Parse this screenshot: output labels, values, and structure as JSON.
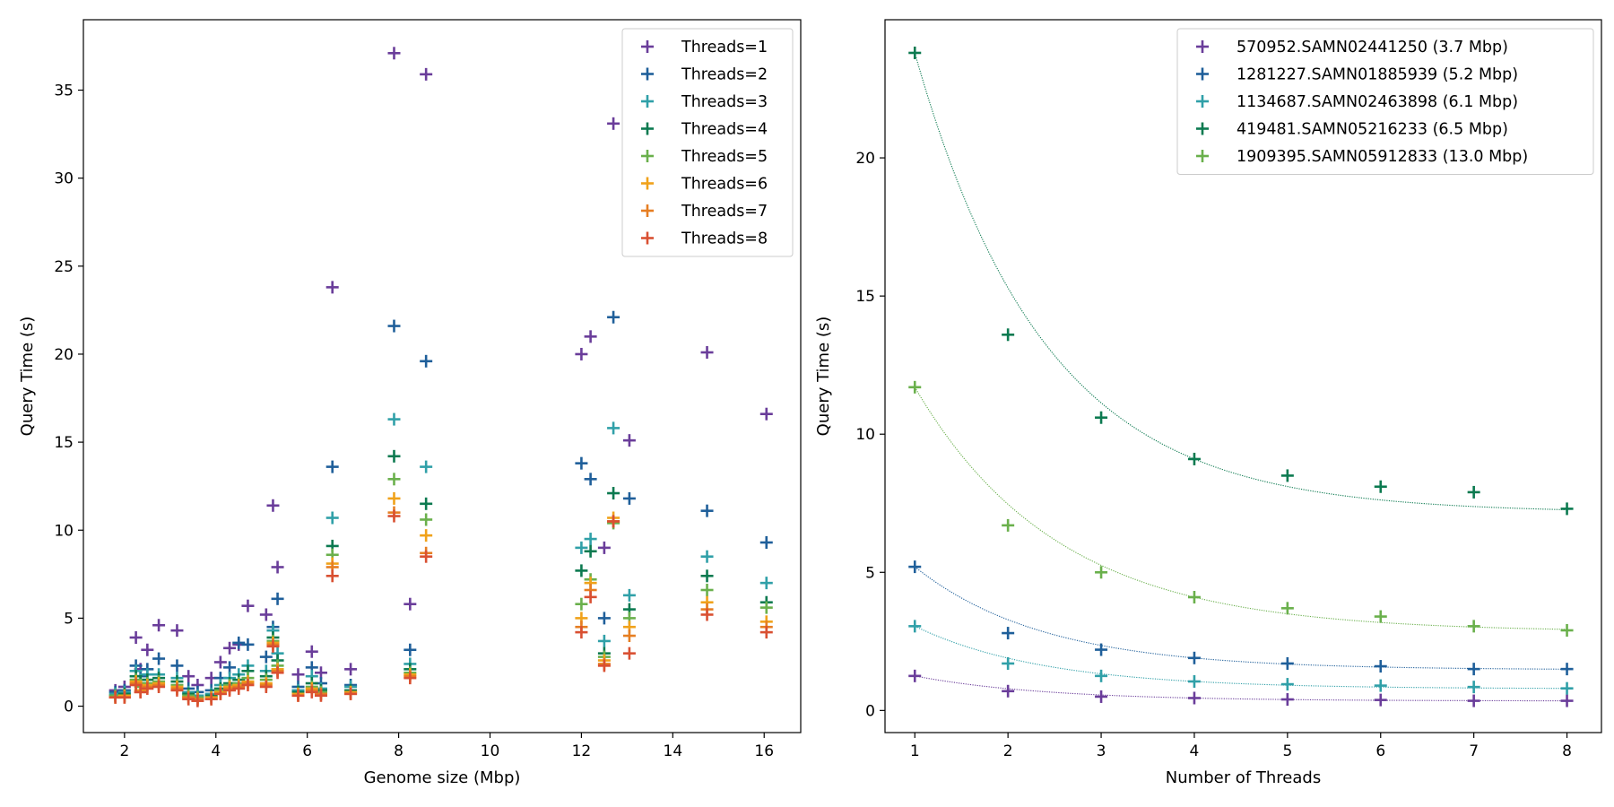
{
  "chart_data": [
    {
      "type": "scatter",
      "xlabel": "Genome size (Mbp)",
      "ylabel": "Query Time (s)",
      "xlim": [
        1.1,
        16.8
      ],
      "ylim": [
        -1.5,
        39
      ],
      "xticks": [
        2,
        4,
        6,
        8,
        10,
        12,
        14,
        16
      ],
      "yticks": [
        0,
        5,
        10,
        15,
        20,
        25,
        30,
        35
      ],
      "legend_position": "top-right",
      "genome_sizes": [
        1.8,
        2.0,
        2.25,
        2.35,
        2.5,
        2.75,
        3.15,
        3.4,
        3.6,
        3.9,
        4.1,
        4.3,
        4.5,
        4.7,
        5.1,
        5.25,
        5.35,
        5.8,
        6.1,
        6.3,
        6.55,
        6.95,
        7.9,
        8.25,
        8.6,
        12.0,
        12.2,
        12.5,
        12.7,
        13.05,
        14.75,
        16.05
      ],
      "series": [
        {
          "name": "Threads=1",
          "color": "#6a3d9a",
          "values": [
            0.9,
            1.1,
            3.9,
            2.1,
            3.2,
            4.6,
            4.3,
            1.7,
            1.2,
            1.6,
            2.5,
            3.3,
            3.5,
            5.7,
            5.2,
            11.4,
            7.9,
            1.8,
            3.1,
            1.9,
            23.8,
            2.1,
            37.1,
            5.8,
            35.9,
            20.0,
            21.0,
            9.0,
            33.1,
            15.1,
            20.1,
            16.6
          ]
        },
        {
          "name": "Threads=2",
          "color": "#1f5f9a",
          "values": [
            0.8,
            0.9,
            2.3,
            1.7,
            2.1,
            2.7,
            2.3,
            1.0,
            0.8,
            0.9,
            1.6,
            2.2,
            3.6,
            3.5,
            2.8,
            4.5,
            6.1,
            1.1,
            2.2,
            1.3,
            13.6,
            1.2,
            21.6,
            3.2,
            19.6,
            13.8,
            12.9,
            5.0,
            22.1,
            11.8,
            11.1,
            9.3
          ]
        },
        {
          "name": "Threads=3",
          "color": "#30a0a8",
          "values": [
            0.7,
            0.8,
            2.0,
            1.5,
            1.8,
            1.8,
            1.6,
            0.8,
            0.6,
            0.7,
            1.2,
            1.6,
            1.8,
            2.3,
            2.0,
            4.3,
            3.0,
            0.9,
            1.7,
            1.0,
            10.7,
            1.1,
            16.3,
            2.4,
            13.6,
            9.0,
            9.5,
            3.7,
            15.8,
            6.3,
            8.5,
            7.0
          ]
        },
        {
          "name": "Threads=4",
          "color": "#0c7a50",
          "values": [
            0.6,
            0.7,
            1.7,
            1.3,
            1.5,
            1.6,
            1.4,
            0.7,
            0.5,
            0.6,
            1.0,
            1.3,
            1.5,
            2.0,
            1.7,
            3.9,
            2.6,
            0.8,
            1.3,
            0.9,
            9.1,
            0.9,
            14.2,
            2.1,
            11.5,
            7.7,
            8.8,
            3.0,
            12.1,
            5.5,
            7.4,
            5.9
          ]
        },
        {
          "name": "Threads=5",
          "color": "#6ab04c",
          "values": [
            0.6,
            0.6,
            1.5,
            1.1,
            1.3,
            1.4,
            1.2,
            0.6,
            0.5,
            0.5,
            0.9,
            1.2,
            1.3,
            1.6,
            1.5,
            3.7,
            2.3,
            0.7,
            1.1,
            0.8,
            8.6,
            0.8,
            12.9,
            1.9,
            10.6,
            5.8,
            7.2,
            2.8,
            10.4,
            5.0,
            6.6,
            5.6
          ]
        },
        {
          "name": "Threads=6",
          "color": "#f0a21a",
          "values": [
            0.5,
            0.6,
            1.4,
            0.9,
            1.2,
            1.3,
            1.1,
            0.5,
            0.4,
            0.5,
            0.8,
            1.1,
            1.2,
            1.4,
            1.3,
            3.6,
            2.1,
            0.7,
            1.0,
            0.7,
            8.1,
            0.8,
            11.8,
            1.8,
            9.7,
            5.0,
            7.0,
            2.6,
            10.7,
            4.5,
            5.9,
            4.8
          ]
        },
        {
          "name": "Threads=7",
          "color": "#e67e22",
          "values": [
            0.5,
            0.5,
            1.3,
            0.8,
            1.1,
            1.2,
            1.0,
            0.5,
            0.4,
            0.4,
            0.7,
            1.0,
            1.1,
            1.3,
            1.2,
            3.5,
            2.0,
            0.6,
            0.9,
            0.7,
            7.9,
            0.7,
            11.0,
            1.7,
            8.7,
            4.5,
            6.6,
            2.4,
            10.5,
            4.0,
            5.5,
            4.5
          ]
        },
        {
          "name": "Threads=8",
          "color": "#d95032",
          "values": [
            0.5,
            0.5,
            1.2,
            0.8,
            1.0,
            1.1,
            0.9,
            0.4,
            0.3,
            0.4,
            0.7,
            0.9,
            1.0,
            1.2,
            1.1,
            3.4,
            1.9,
            0.6,
            0.8,
            0.6,
            7.4,
            0.7,
            10.8,
            1.6,
            8.5,
            4.2,
            6.2,
            2.3,
            10.5,
            3.0,
            5.2,
            4.2
          ]
        }
      ]
    },
    {
      "type": "scatter",
      "xlabel": "Number of Threads",
      "ylabel": "Query Time (s)",
      "xlim": [
        0.68,
        8.37
      ],
      "ylim": [
        -0.8,
        25.0
      ],
      "xticks": [
        1,
        2,
        3,
        4,
        5,
        6,
        7,
        8
      ],
      "yticks": [
        0,
        5,
        10,
        15,
        20
      ],
      "legend_position": "top-right",
      "x": [
        1,
        2,
        3,
        4,
        5,
        6,
        7,
        8
      ],
      "series": [
        {
          "name": "570952.SAMN02441250 (3.7 Mbp)",
          "color": "#6a3d9a",
          "values": [
            1.25,
            0.7,
            0.5,
            0.45,
            0.4,
            0.38,
            0.35,
            0.35
          ]
        },
        {
          "name": "1281227.SAMN01885939 (5.2 Mbp)",
          "color": "#1f5f9a",
          "values": [
            5.2,
            2.8,
            2.2,
            1.9,
            1.7,
            1.6,
            1.5,
            1.5
          ]
        },
        {
          "name": "1134687.SAMN02463898 (6.1 Mbp)",
          "color": "#30a0a8",
          "values": [
            3.05,
            1.7,
            1.25,
            1.05,
            0.95,
            0.9,
            0.85,
            0.8
          ]
        },
        {
          "name": "419481.SAMN05216233 (6.5 Mbp)",
          "color": "#0c7a50",
          "values": [
            23.8,
            13.6,
            10.6,
            9.1,
            8.5,
            8.1,
            7.9,
            7.3
          ]
        },
        {
          "name": "1909395.SAMN05912833 (13.0 Mbp)",
          "color": "#6ab04c",
          "values": [
            11.7,
            6.7,
            5.0,
            4.1,
            3.7,
            3.4,
            3.05,
            2.9
          ]
        }
      ]
    }
  ]
}
